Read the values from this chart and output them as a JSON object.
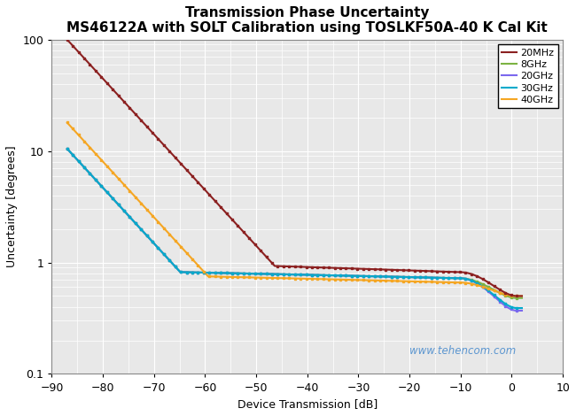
{
  "title_line1": "Transmission Phase Uncertainty",
  "title_line2": "MS46122A with SOLT Calibration using TOSLKF50A-40 K Cal Kit",
  "xlabel": "Device Transmission [dB]",
  "ylabel": "Uncertainty [degrees]",
  "xlim": [
    -90,
    10
  ],
  "ylim_log": [
    0.1,
    100
  ],
  "xticks": [
    -90,
    -80,
    -70,
    -60,
    -50,
    -40,
    -30,
    -20,
    -10,
    0,
    10
  ],
  "watermark": "www.tehencom.com",
  "series": [
    {
      "label": "20MHz",
      "color": "#8B2020",
      "noise_floor": 0.93,
      "noise_floor_start": -47,
      "drop_start": -10,
      "drop_end_y": 0.5,
      "scale": 250.0,
      "x_left": -87
    },
    {
      "label": "8GHz",
      "color": "#7CB342",
      "noise_floor": 0.82,
      "noise_floor_start": -60,
      "drop_start": -10,
      "drop_end_y": 0.48,
      "scale": 12.0,
      "x_left": -87
    },
    {
      "label": "20GHz",
      "color": "#7B68EE",
      "noise_floor": 0.82,
      "noise_floor_start": -60,
      "drop_start": -10,
      "drop_end_y": 0.37,
      "scale": 12.0,
      "x_left": -87
    },
    {
      "label": "30GHz",
      "color": "#00AACC",
      "noise_floor": 0.82,
      "noise_floor_start": -60,
      "drop_start": -10,
      "drop_end_y": 0.39,
      "scale": 12.0,
      "x_left": -87
    },
    {
      "label": "40GHz",
      "color": "#F5A623",
      "noise_floor": 0.75,
      "noise_floor_start": -60,
      "drop_start": -10,
      "drop_end_y": 0.48,
      "scale": 22.0,
      "x_left": -87
    }
  ],
  "background_color": "#e8e8e8",
  "grid_color": "#ffffff",
  "title_fontsize": 11,
  "axis_label_fontsize": 9,
  "tick_fontsize": 9,
  "legend_fontsize": 8
}
